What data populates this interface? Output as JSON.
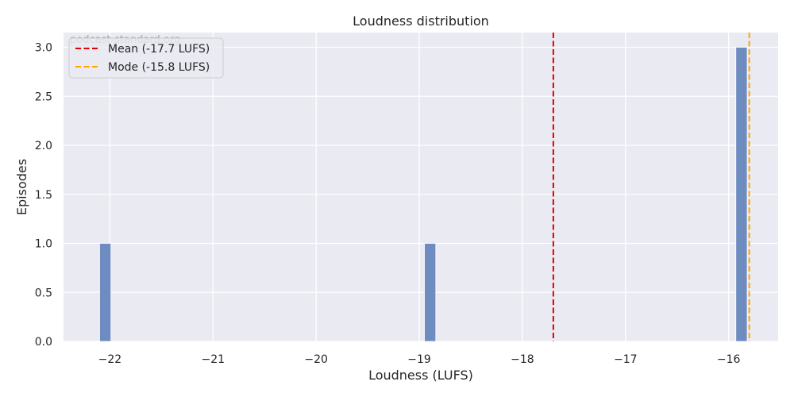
{
  "chart_data": {
    "type": "bar",
    "title": "Loudness distribution",
    "xlabel": "Loudness (LUFS)",
    "ylabel": "Episodes",
    "xlim": [
      -22.45,
      -15.52
    ],
    "ylim": [
      0,
      3.15
    ],
    "x_ticks": [
      -22,
      -21,
      -20,
      -19,
      -18,
      -17,
      -16
    ],
    "x_tick_labels": [
      "−22",
      "−21",
      "−20",
      "−19",
      "−18",
      "−17",
      "−16"
    ],
    "y_ticks": [
      0,
      0.5,
      1,
      1.5,
      2,
      2.5,
      3
    ],
    "y_tick_labels": [
      "0.0",
      "0.5",
      "1.0",
      "1.5",
      "2.0",
      "2.5",
      "3.0"
    ],
    "grid": true,
    "bins": [
      {
        "start": -22.1,
        "end": -21.99,
        "count": 1
      },
      {
        "start": -18.95,
        "end": -18.84,
        "count": 1
      },
      {
        "start": -15.93,
        "end": -15.82,
        "count": 3
      }
    ],
    "reference_lines": [
      {
        "label": "Mean (-17.7 LUFS)",
        "x": -17.7,
        "color": "#e00000"
      },
      {
        "label": "Mode (-15.8 LUFS)",
        "x": -15.8,
        "color": "#ffa500"
      }
    ],
    "legend_position": "top-left",
    "watermark": "podcast-standard.org",
    "colors": {
      "bar": "#6f8cc0",
      "plot_background": "#eaeaf2",
      "grid": "#ffffff"
    }
  }
}
